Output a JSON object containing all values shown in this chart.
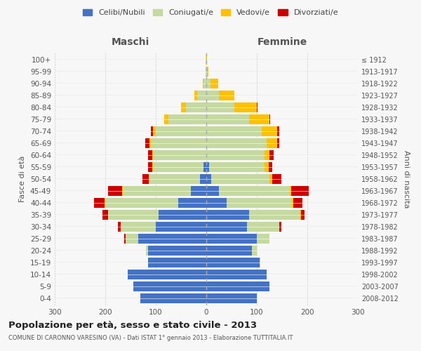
{
  "age_groups": [
    "0-4",
    "5-9",
    "10-14",
    "15-19",
    "20-24",
    "25-29",
    "30-34",
    "35-39",
    "40-44",
    "45-49",
    "50-54",
    "55-59",
    "60-64",
    "65-69",
    "70-74",
    "75-79",
    "80-84",
    "85-89",
    "90-94",
    "95-99",
    "100+"
  ],
  "birth_years": [
    "2008-2012",
    "2003-2007",
    "1998-2002",
    "1993-1997",
    "1988-1992",
    "1983-1987",
    "1978-1982",
    "1973-1977",
    "1968-1972",
    "1963-1967",
    "1958-1962",
    "1953-1957",
    "1948-1952",
    "1943-1947",
    "1938-1942",
    "1933-1937",
    "1928-1932",
    "1923-1927",
    "1918-1922",
    "1913-1917",
    "≤ 1912"
  ],
  "male": {
    "celibe": [
      130,
      145,
      155,
      115,
      115,
      135,
      100,
      95,
      55,
      30,
      12,
      5,
      0,
      0,
      0,
      0,
      0,
      0,
      0,
      0,
      0
    ],
    "coniugato": [
      0,
      0,
      0,
      0,
      5,
      25,
      70,
      100,
      145,
      135,
      100,
      100,
      105,
      110,
      100,
      75,
      40,
      18,
      5,
      2,
      2
    ],
    "vedovo": [
      0,
      0,
      0,
      0,
      0,
      0,
      0,
      0,
      2,
      2,
      2,
      2,
      2,
      3,
      5,
      8,
      10,
      5,
      2,
      0,
      0
    ],
    "divorziato": [
      0,
      0,
      0,
      0,
      0,
      2,
      5,
      10,
      20,
      28,
      12,
      8,
      8,
      8,
      5,
      0,
      0,
      0,
      0,
      0,
      0
    ]
  },
  "female": {
    "nubile": [
      100,
      125,
      120,
      105,
      90,
      100,
      80,
      85,
      40,
      25,
      10,
      5,
      0,
      0,
      0,
      0,
      0,
      0,
      0,
      0,
      0
    ],
    "coniugata": [
      0,
      0,
      0,
      2,
      10,
      25,
      65,
      100,
      130,
      140,
      115,
      110,
      115,
      120,
      110,
      85,
      55,
      25,
      8,
      2,
      0
    ],
    "vedova": [
      0,
      0,
      0,
      0,
      0,
      0,
      0,
      2,
      2,
      3,
      5,
      8,
      10,
      20,
      30,
      40,
      45,
      30,
      15,
      2,
      2
    ],
    "divorziata": [
      0,
      0,
      0,
      0,
      0,
      0,
      3,
      8,
      18,
      35,
      18,
      8,
      8,
      5,
      5,
      2,
      2,
      0,
      0,
      0,
      0
    ]
  },
  "colors": {
    "celibe_nubile": "#4472c4",
    "coniugato": "#c5d9a0",
    "vedovo": "#ffc000",
    "divorziato": "#cc0000"
  },
  "title": "Popolazione per età, sesso e stato civile - 2013",
  "subtitle": "COMUNE DI CARONNO VARESINO (VA) - Dati ISTAT 1° gennaio 2013 - Elaborazione TUTTITALIA.IT",
  "xlabel_left": "Maschi",
  "xlabel_right": "Femmine",
  "ylabel_left": "Fasce di età",
  "ylabel_right": "Anni di nascita",
  "xlim": 300,
  "bg_color": "#f7f7f7",
  "grid_color": "#cccccc"
}
